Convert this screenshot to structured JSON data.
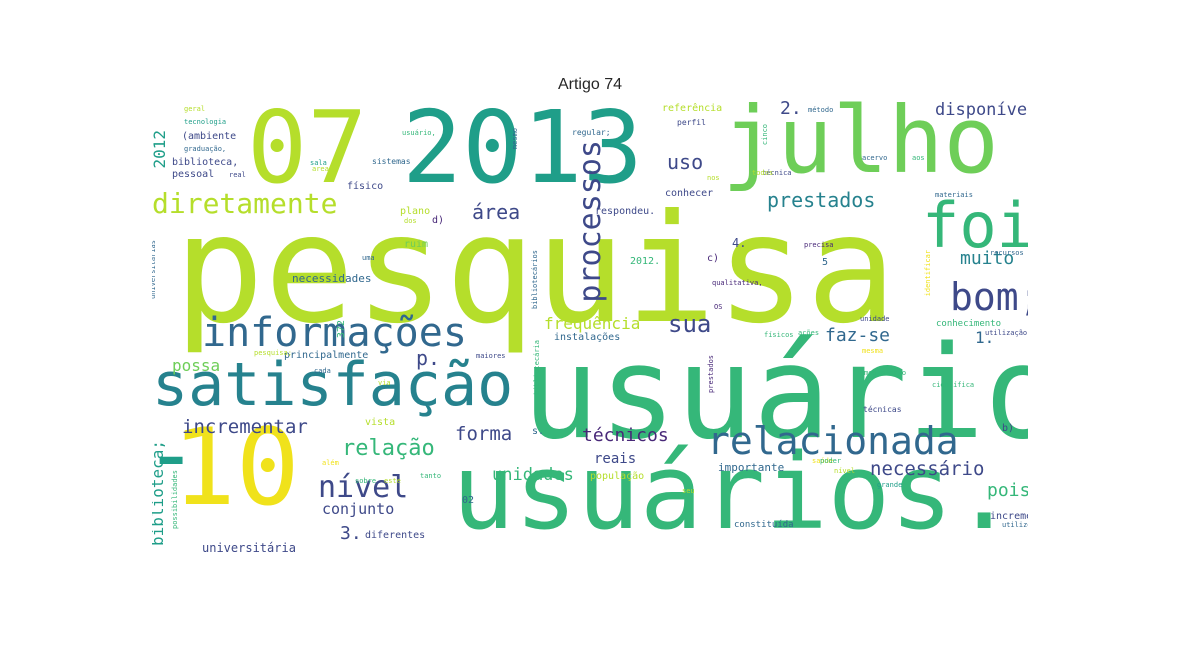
{
  "title": "Artigo 74",
  "palette": {
    "yellow": "#f0e21b",
    "lime": "#b5de2b",
    "ltgreen": "#6ece58",
    "green": "#35b779",
    "teal": "#1f9e89",
    "blue": "#26828e",
    "steel": "#31688e",
    "indigo": "#3e4989",
    "purple": "#482878",
    "dark": "#440154"
  },
  "words": [
    {
      "text": "pesquisa",
      "color": "lime"
    },
    {
      "text": "usuário",
      "color": "green"
    },
    {
      "text": "usuários.",
      "color": "green"
    },
    {
      "text": "2013",
      "color": "teal"
    },
    {
      "text": "07",
      "color": "lime"
    },
    {
      "text": "julho",
      "color": "ltgreen"
    },
    {
      "text": "10",
      "color": "yellow"
    },
    {
      "text": "satisfação",
      "color": "blue"
    },
    {
      "text": "informações",
      "color": "steel"
    },
    {
      "text": "foi",
      "color": "green"
    },
    {
      "text": "bom;",
      "color": "indigo"
    },
    {
      "text": "relacionada",
      "color": "steel"
    },
    {
      "text": "diretamente",
      "color": "lime"
    },
    {
      "text": "processos",
      "color": "indigo"
    },
    {
      "text": "-",
      "color": "teal"
    },
    {
      "text": "nível",
      "color": "indigo"
    },
    {
      "text": "prestados",
      "color": "blue"
    },
    {
      "text": "muito",
      "color": "blue"
    },
    {
      "text": "sua",
      "color": "indigo"
    },
    {
      "text": "área",
      "color": "indigo"
    },
    {
      "text": "uso",
      "color": "indigo"
    },
    {
      "text": "2.",
      "color": "indigo"
    },
    {
      "text": "disponíveis",
      "color": "indigo"
    },
    {
      "text": "2012",
      "color": "teal"
    },
    {
      "text": "relação",
      "color": "green"
    },
    {
      "text": "incrementar",
      "color": "indigo"
    },
    {
      "text": "forma",
      "color": "indigo"
    },
    {
      "text": "técnicos",
      "color": "purple"
    },
    {
      "text": "necessário",
      "color": "indigo"
    },
    {
      "text": "pois",
      "color": "green"
    },
    {
      "text": "unidades",
      "color": "green"
    },
    {
      "text": "frequência",
      "color": "lime"
    },
    {
      "text": "faz-se",
      "color": "steel"
    },
    {
      "text": "p.",
      "color": "indigo"
    },
    {
      "text": "possa",
      "color": "ltgreen"
    },
    {
      "text": "conjunto",
      "color": "indigo"
    },
    {
      "text": "3.",
      "color": "indigo"
    },
    {
      "text": "biblioteca;",
      "color": "teal"
    },
    {
      "text": "universitária",
      "color": "indigo"
    },
    {
      "text": "reais",
      "color": "indigo"
    },
    {
      "text": "1.",
      "color": "steel"
    },
    {
      "text": "necessidades",
      "color": "steel"
    },
    {
      "text": "sugestões/usuários",
      "color": "steel"
    },
    {
      "text": "principalmente",
      "color": "steel"
    },
    {
      "text": "instalações",
      "color": "steel"
    },
    {
      "text": "importante",
      "color": "steel"
    },
    {
      "text": "diferentes",
      "color": "indigo"
    },
    {
      "text": "incremento",
      "color": "indigo"
    },
    {
      "text": "constituída",
      "color": "steel"
    },
    {
      "text": "conhecer",
      "color": "indigo"
    },
    {
      "text": "respondeu.",
      "color": "indigo"
    },
    {
      "text": "referência",
      "color": "lime"
    },
    {
      "text": "perfil",
      "color": "indigo"
    },
    {
      "text": "regular;",
      "color": "steel"
    },
    {
      "text": "físico",
      "color": "indigo"
    },
    {
      "text": "biblioteca,",
      "color": "indigo"
    },
    {
      "text": "pessoal",
      "color": "indigo"
    },
    {
      "text": "(ambiente",
      "color": "indigo"
    },
    {
      "text": "graduação,",
      "color": "steel"
    },
    {
      "text": "tecnologia",
      "color": "teal"
    },
    {
      "text": "geral",
      "color": "lime"
    },
    {
      "text": "sistemas",
      "color": "steel"
    },
    {
      "text": "conhecimento",
      "color": "green"
    },
    {
      "text": "utilização",
      "color": "indigo"
    },
    {
      "text": "população",
      "color": "lime"
    },
    {
      "text": "vista",
      "color": "lime"
    },
    {
      "text": "plano",
      "color": "lime"
    },
    {
      "text": "ruim",
      "color": "ltgreen"
    },
    {
      "text": "4.",
      "color": "indigo"
    },
    {
      "text": "2012.",
      "color": "green"
    },
    {
      "text": "c)",
      "color": "purple"
    },
    {
      "text": "5",
      "color": "steel"
    },
    {
      "text": "d)",
      "color": "purple"
    },
    {
      "text": "b)",
      "color": "indigo"
    },
    {
      "text": "s.",
      "color": "steel"
    },
    {
      "text": "02",
      "color": "steel"
    },
    {
      "text": "372",
      "color": "green"
    },
    {
      "text": "real",
      "color": "indigo"
    },
    {
      "text": "grande",
      "color": "teal"
    },
    {
      "text": "técnicas",
      "color": "indigo"
    },
    {
      "text": "unidade",
      "color": "indigo"
    },
    {
      "text": "qualitativa,",
      "color": "purple"
    },
    {
      "text": "mediatário",
      "color": "green"
    },
    {
      "text": "científica",
      "color": "green"
    },
    {
      "text": "materiais",
      "color": "steel"
    },
    {
      "text": "precisa",
      "color": "purple"
    },
    {
      "text": "OS",
      "color": "purple"
    },
    {
      "text": "maiores",
      "color": "indigo"
    },
    {
      "text": "sala",
      "color": "teal"
    },
    {
      "text": "método",
      "color": "steel"
    },
    {
      "text": "mesmo",
      "color": "steel"
    },
    {
      "text": "usuário,",
      "color": "green"
    },
    {
      "text": "saúde",
      "color": "yellow"
    },
    {
      "text": "cinco",
      "color": "green"
    },
    {
      "text": "técnica",
      "color": "indigo"
    },
    {
      "text": "utilizou-se",
      "color": "steel"
    },
    {
      "text": "prestados",
      "color": "purple"
    },
    {
      "text": "identificar",
      "color": "yellow"
    },
    {
      "text": "bibliotecários",
      "color": "steel"
    },
    {
      "text": "bibliotecária",
      "color": "green"
    },
    {
      "text": "universitárias",
      "color": "steel"
    },
    {
      "text": "pesquisa;",
      "color": "lime"
    },
    {
      "text": "possibilidades",
      "color": "green"
    },
    {
      "text": "recursos",
      "color": "steel"
    },
    {
      "text": "integradas,",
      "color": "indigo"
    },
    {
      "text": "livros",
      "color": "green"
    },
    {
      "text": "físicos",
      "color": "green"
    },
    {
      "text": "ações",
      "color": "green"
    },
    {
      "text": "cada",
      "color": "steel"
    },
    {
      "text": "acervo",
      "color": "steel"
    },
    {
      "text": "todos",
      "color": "lime"
    },
    {
      "text": "nos",
      "color": "lime"
    },
    {
      "text": "tanto",
      "color": "green"
    },
    {
      "text": "além",
      "color": "yellow"
    },
    {
      "text": "sobre",
      "color": "green"
    },
    {
      "text": "poder",
      "color": "green"
    },
    {
      "text": "este",
      "color": "lime"
    },
    {
      "text": "seu",
      "color": "lime"
    },
    {
      "text": "dos",
      "color": "lime"
    },
    {
      "text": "mesma",
      "color": "yellow"
    },
    {
      "text": "nível",
      "color": "lime"
    },
    {
      "text": "aos",
      "color": "green"
    },
    {
      "text": "uma",
      "color": "steel"
    },
    {
      "text": "area",
      "color": "lime"
    },
    {
      "text": "via",
      "color": "lime"
    }
  ]
}
